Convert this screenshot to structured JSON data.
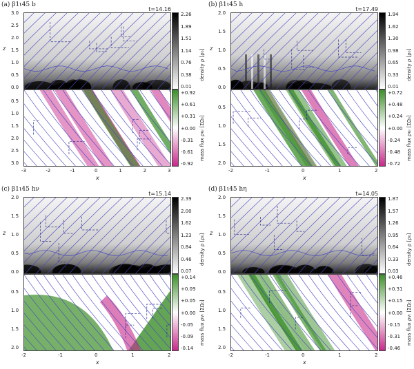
{
  "panels": [
    {
      "title": "(a) β1ι45 b",
      "time": "t=14.16",
      "density_ticks": [
        "2.26",
        "1.89",
        "1.51",
        "1.14",
        "0.76",
        "0.38",
        "0.01"
      ],
      "flux_ticks": [
        "+0.92",
        "+0.61",
        "+0.31",
        "+0.00",
        "-0.31",
        "-0.61",
        "-0.92"
      ],
      "z_ticks_top": [
        "3.0",
        "2.5",
        "2.0",
        "1.5",
        "1.0",
        "0.5",
        "0.0"
      ],
      "z_ticks_bottom": [
        "0.5",
        "1.0",
        "1.5",
        "2.0",
        "2.5",
        "3.0"
      ],
      "x_ticks": [
        "-3",
        "-2",
        "-1",
        "0",
        "1",
        "2",
        "3"
      ]
    },
    {
      "title": "(b) β1ι45 h",
      "time": "t=17.49",
      "density_ticks": [
        "1.94",
        "1.62",
        "1.30",
        "0.98",
        "0.65",
        "0.33",
        "0.01"
      ],
      "flux_ticks": [
        "+0.72",
        "+0.48",
        "+0.24",
        "+0.00",
        "-0.24",
        "-0.48",
        "-0.72"
      ],
      "z_ticks_top": [
        "2.0",
        "1.5",
        "1.0",
        "0.5",
        "0.0"
      ],
      "z_ticks_bottom": [
        "0.5",
        "1.0",
        "1.5",
        "2.0"
      ],
      "x_ticks": [
        "-2",
        "-1",
        "0",
        "1",
        "2"
      ]
    },
    {
      "title": "(c) β1ι45 hν",
      "time": "t=15.14",
      "density_ticks": [
        "2.39",
        "2.00",
        "1.62",
        "1.23",
        "0.84",
        "0.46",
        "0.07"
      ],
      "flux_ticks": [
        "+0.14",
        "+0.09",
        "+0.05",
        "+0.00",
        "-0.05",
        "-0.09",
        "-0.14"
      ],
      "z_ticks_top": [
        "2.0",
        "1.5",
        "1.0",
        "0.5",
        "0.0"
      ],
      "z_ticks_bottom": [
        "0.5",
        "1.0",
        "1.5",
        "2.0"
      ],
      "x_ticks": [
        "-2",
        "-1",
        "0",
        "1",
        "2"
      ]
    },
    {
      "title": "(d) β1ι45 hη",
      "time": "t=14.05",
      "density_ticks": [
        "1.87",
        "1.57",
        "1.26",
        "0.95",
        "0.64",
        "0.33",
        "0.03"
      ],
      "flux_ticks": [
        "+0.46",
        "+0.31",
        "+0.15",
        "+0.00",
        "-0.15",
        "-0.31",
        "-0.46"
      ],
      "z_ticks_top": [
        "2.0",
        "1.5",
        "1.0",
        "0.5",
        "0.0"
      ],
      "z_ticks_bottom": [
        "0.5",
        "1.0",
        "1.5",
        "2.0"
      ],
      "x_ticks": [
        "-2",
        "-1",
        "0",
        "1",
        "2"
      ]
    }
  ],
  "labels": {
    "z": "z",
    "x": "x",
    "density_label": "density ρ [ρ₀]",
    "flux_label": "mass flux ρvᵣ [ΣΩ₀]"
  },
  "colors": {
    "field_lines": "#4848c0",
    "flux_positive": "#3d8f2a",
    "flux_negative": "#c8288a",
    "density_dark": "#000000"
  }
}
